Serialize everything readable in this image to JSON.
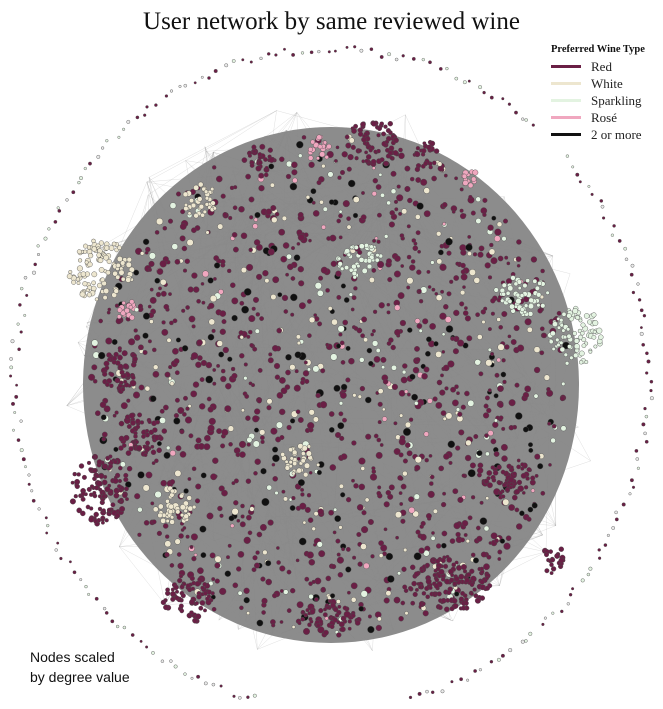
{
  "title": "User network by same reviewed wine",
  "legend": {
    "title": "Preferred Wine Type",
    "items": [
      {
        "label": "Red",
        "color": "#6a1f45"
      },
      {
        "label": "White",
        "color": "#ede6cf"
      },
      {
        "label": "Sparkling",
        "color": "#e3f3e1"
      },
      {
        "label": "Rosé",
        "color": "#f0a7bf"
      },
      {
        "label": "2 or more",
        "color": "#111111"
      }
    ]
  },
  "note": {
    "line1": "Nodes scaled",
    "line2": "by degree value"
  },
  "colors": {
    "edge": "#8a8a8a",
    "node_stroke": "#4a4a4a"
  }
}
